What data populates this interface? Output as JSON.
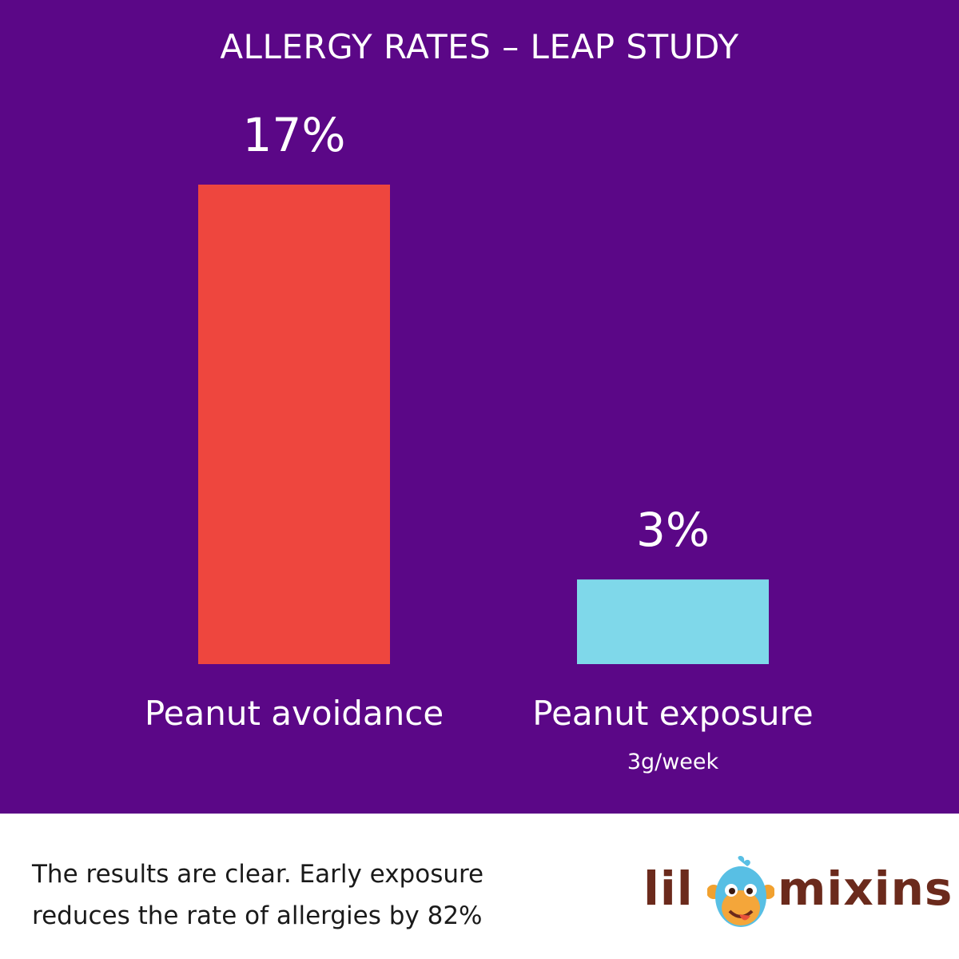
{
  "chart_data": {
    "type": "bar",
    "title": "ALLERGY RATES – LEAP STUDY",
    "categories": [
      "Peanut avoidance",
      "Peanut exposure"
    ],
    "category_sublabels": [
      "",
      "3g/week"
    ],
    "values": [
      17,
      3
    ],
    "value_labels": [
      "17%",
      "3%"
    ],
    "bar_colors": [
      "#ee463e",
      "#7fd8ea"
    ],
    "background_color": "#5b0787",
    "ylim": [
      0,
      17
    ],
    "grid": false,
    "legend": "none"
  },
  "footer": {
    "caption_line1": "The results are clear. Early exposure",
    "caption_line2": "reduces the rate of allergies by 82%"
  },
  "logo": {
    "left_text": "lil",
    "right_text": "mixins",
    "mark_icon": "monkey-face-icon",
    "text_color": "#6b2a1c"
  }
}
